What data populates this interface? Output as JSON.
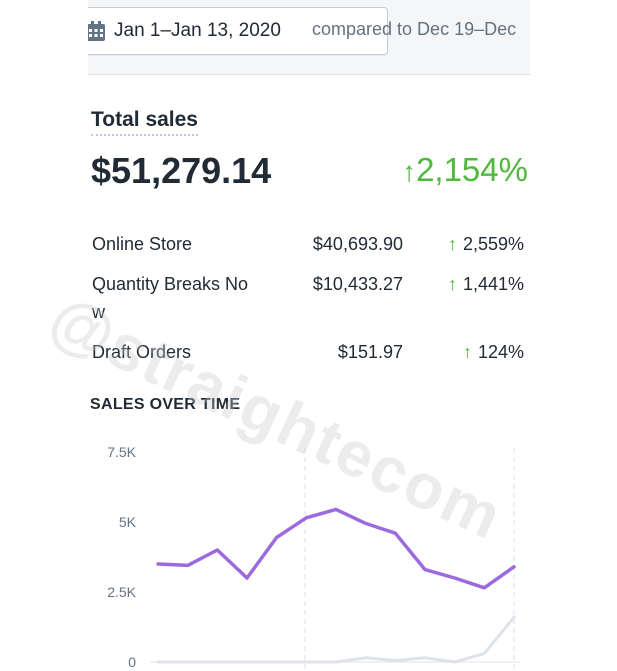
{
  "header": {
    "date_range": "Jan 1–Jan 13, 2020",
    "compare_text": "compared to Dec 19–Dec",
    "calendar_icon": "calendar-icon"
  },
  "total_sales": {
    "title": "Total sales",
    "value": "$51,279.14",
    "change": "2,154%",
    "change_color": "#50b83c"
  },
  "breakdown": [
    {
      "name": "Online Store",
      "value": "$40,693.90",
      "change": "2,559%"
    },
    {
      "name": "Quantity Breaks Now",
      "value": "$10,433.27",
      "change": "1,441%"
    },
    {
      "name": "Draft Orders",
      "value": "$151.97",
      "change": "124%"
    }
  ],
  "arrow_glyph": "↑",
  "watermark": "@straightecom",
  "sales_over_time": {
    "title": "SALES OVER TIME"
  },
  "chart_data": {
    "type": "line",
    "ylim": [
      0,
      7500
    ],
    "yticks": [
      "7.5K",
      "5K",
      "2.5K",
      "0"
    ],
    "ytick_values": [
      7500,
      5000,
      2500,
      0
    ],
    "series": [
      {
        "color": "#9c6ade",
        "values": [
          3500,
          3450,
          4000,
          3000,
          4450,
          5150,
          5450,
          4950,
          4600,
          3300,
          3000,
          2650,
          3400
        ]
      },
      {
        "color": "#dfe3e8",
        "values": [
          0,
          0,
          0,
          0,
          0,
          0,
          0,
          150,
          50,
          150,
          0,
          300,
          1600
        ]
      }
    ]
  }
}
